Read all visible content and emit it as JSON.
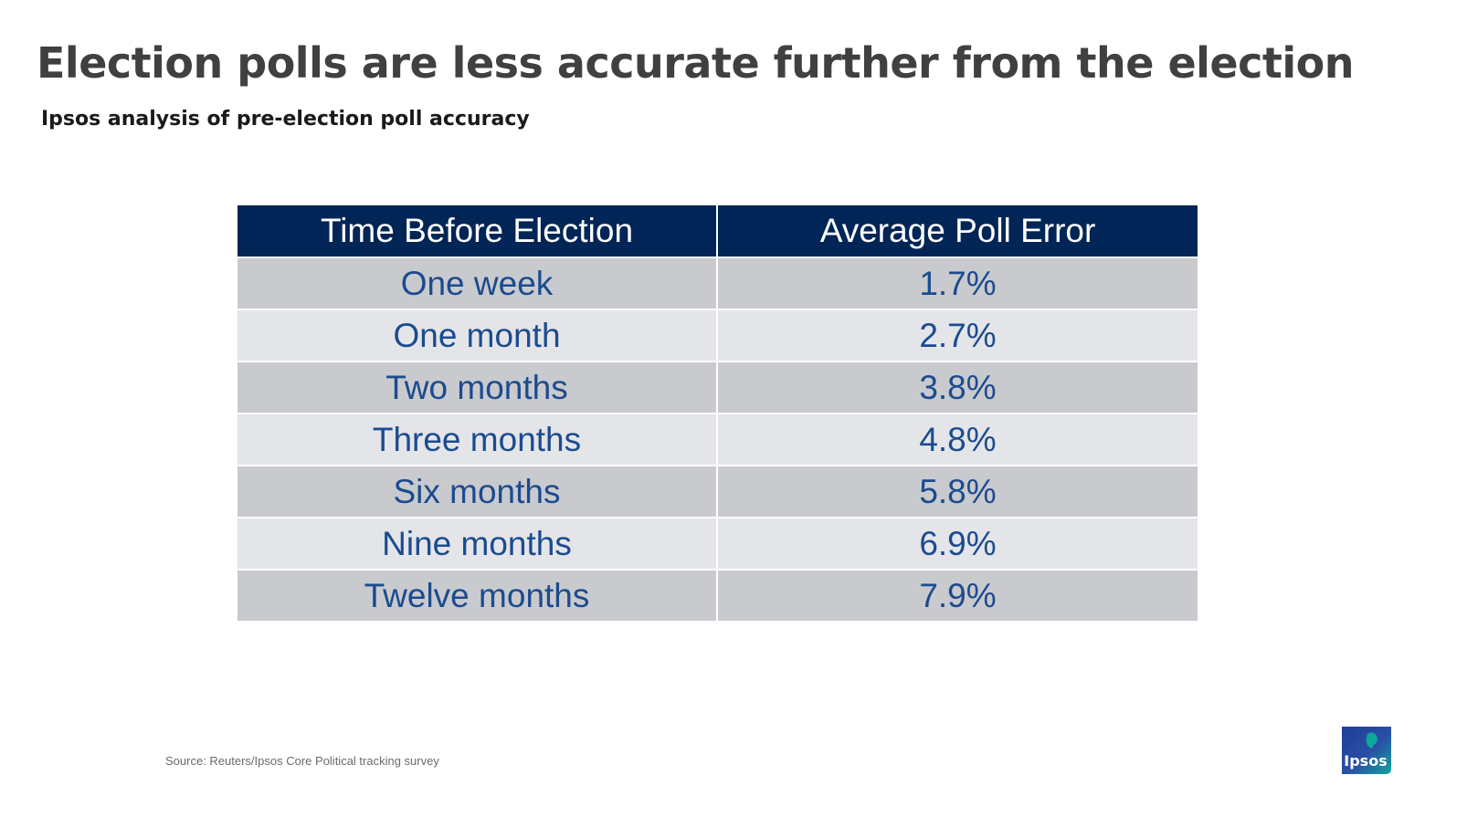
{
  "title": "Election polls are less accurate further from the election",
  "subtitle": "Ipsos analysis of pre-election poll accuracy",
  "source": "Source: Reuters/Ipsos Core Political tracking survey",
  "logo_text": "Ipsos",
  "colors": {
    "header_bg": "#002556",
    "row_dark": "#c9cace",
    "row_light": "#e4e5e8",
    "cell_text": "#1b4b8f"
  },
  "chart_data": {
    "type": "table",
    "columns": [
      "Time Before Election",
      "Average Poll Error"
    ],
    "rows": [
      [
        "One week",
        "1.7%"
      ],
      [
        "One month",
        "2.7%"
      ],
      [
        "Two months",
        "3.8%"
      ],
      [
        "Three months",
        "4.8%"
      ],
      [
        "Six months",
        "5.8%"
      ],
      [
        "Nine months",
        "6.9%"
      ],
      [
        "Twelve months",
        "7.9%"
      ]
    ]
  }
}
